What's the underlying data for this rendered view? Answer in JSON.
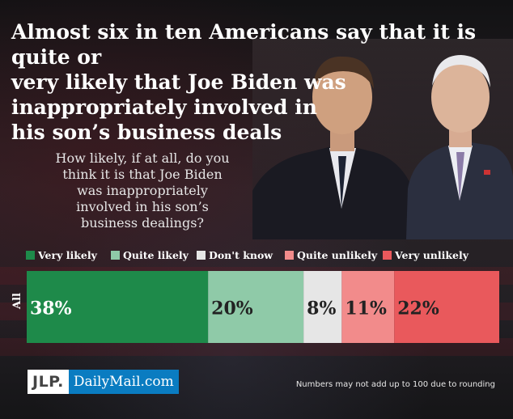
{
  "headline": "Almost six in ten Americans say that it is quite or\nvery likely that  Joe Biden was\n inappropriately involved in\nhis son’s business deals",
  "question": "How likely, if at all, do you\nthink it is that Joe Biden\nwas inappropriately\ninvolved in his son’s\nbusiness dealings?",
  "footer": {
    "logo_left": "JLP.",
    "logo_right": "DailyMail.com",
    "note": "Numbers may not add up to 100 due to rounding"
  },
  "chart_data": {
    "type": "bar",
    "orientation": "horizontal",
    "stacked": true,
    "categories": [
      "All"
    ],
    "series": [
      {
        "name": "Very likely",
        "values": [
          38
        ],
        "label": "38%",
        "color": "#1e8a4a"
      },
      {
        "name": "Quite likely",
        "values": [
          20
        ],
        "label": "20%",
        "color": "#8fcaa8"
      },
      {
        "name": "Don't know",
        "values": [
          8
        ],
        "label": "8%",
        "color": "#e6e6e6"
      },
      {
        "name": "Quite unlikely",
        "values": [
          11
        ],
        "label": "11%",
        "color": "#f28b8b"
      },
      {
        "name": "Very unlikely",
        "values": [
          22
        ],
        "label": "22%",
        "color": "#e9595c"
      }
    ],
    "xlim": [
      0,
      99
    ],
    "legend_position": "top",
    "grid": false
  }
}
